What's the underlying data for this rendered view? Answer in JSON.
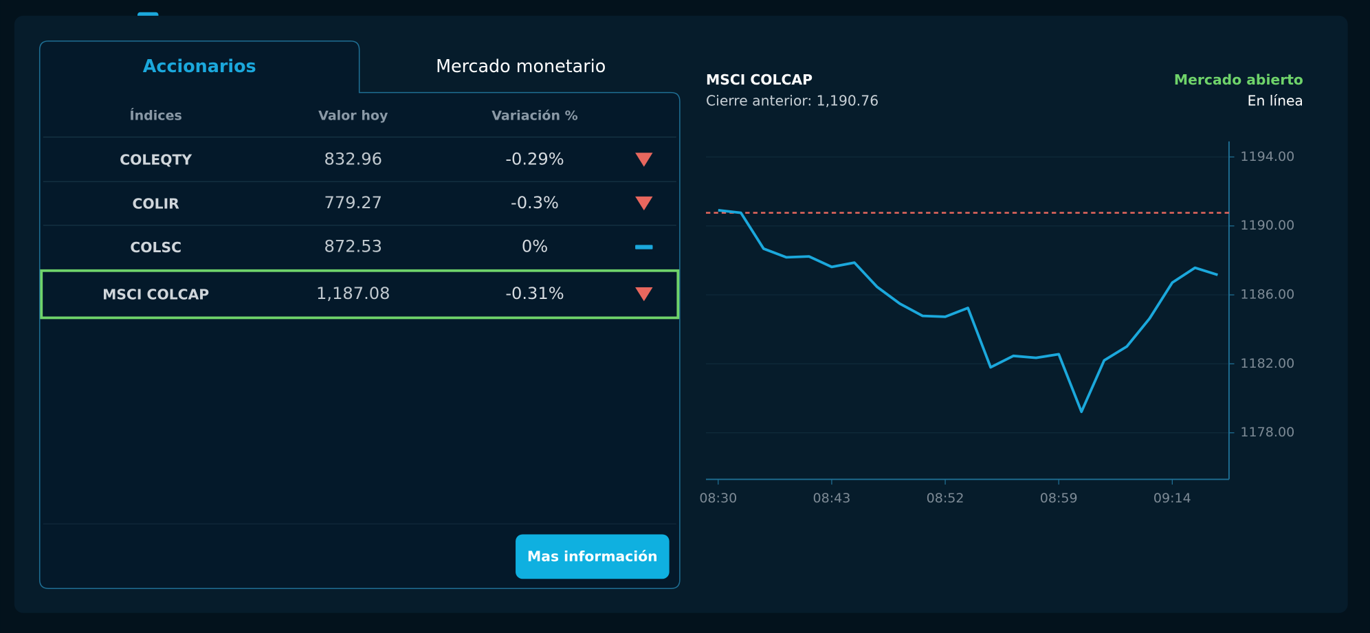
{
  "tabs": [
    "Accionarios",
    "Mercado monetario"
  ],
  "active_tab": 0,
  "table": {
    "headers": [
      "Índices",
      "Valor hoy",
      "Variación %"
    ],
    "rows": [
      {
        "name": "COLEQTY",
        "value": "832.96",
        "variation": "-0.29%",
        "trend": "down"
      },
      {
        "name": "COLIR",
        "value": "779.27",
        "variation": "-0.3%",
        "trend": "down"
      },
      {
        "name": "COLSC",
        "value": "872.53",
        "variation": "0%",
        "trend": "flat"
      },
      {
        "name": "MSCI COLCAP",
        "value": "1,187.08",
        "variation": "-0.31%",
        "trend": "down"
      }
    ],
    "selected_row": 3
  },
  "button": "Mas información",
  "chart_data": {
    "type": "line",
    "title": "MSCI COLCAP",
    "subtitle": "Cierre anterior: 1,190.76",
    "status": "Mercado abierto",
    "connection": "En línea",
    "reference_value": 1190.76,
    "reference_color": "#e8675e",
    "categories": [
      "08:30",
      null,
      null,
      null,
      null,
      "08:43",
      null,
      null,
      null,
      null,
      "08:52",
      null,
      null,
      null,
      null,
      "08:59",
      null,
      null,
      null,
      null,
      "09:14",
      null,
      null
    ],
    "values": [
      1190.91,
      1190.76,
      1188.68,
      1188.18,
      1188.23,
      1187.62,
      1187.87,
      1186.46,
      1185.49,
      1184.78,
      1184.73,
      1185.24,
      1181.8,
      1182.46,
      1182.35,
      1182.56,
      1179.22,
      1182.2,
      1183.01,
      1184.63,
      1186.71,
      1187.57,
      1187.16
    ],
    "color": "#1ba8dc",
    "ylim": [
      1175.3,
      1194.9
    ],
    "yticks": [
      {
        "value": 1178,
        "label": "1178.00"
      },
      {
        "value": 1182,
        "label": "1182.00"
      },
      {
        "value": 1186,
        "label": "1186.00"
      },
      {
        "value": 1190,
        "label": "1190.00"
      },
      {
        "value": 1194,
        "label": "1194.00"
      }
    ],
    "grid": true
  }
}
